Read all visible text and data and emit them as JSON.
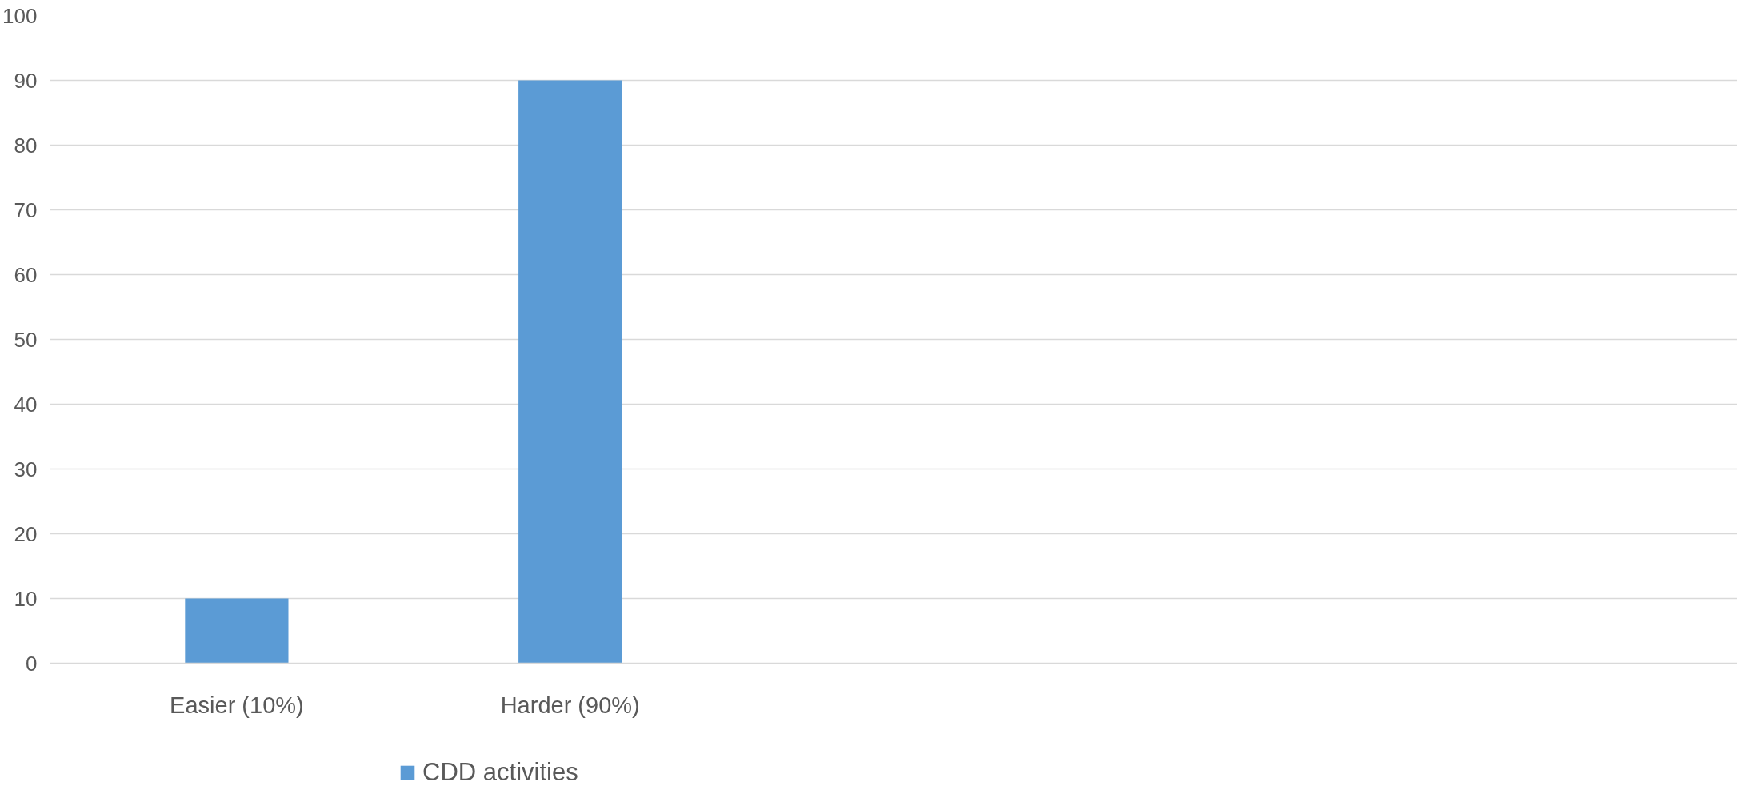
{
  "chart_data": {
    "type": "bar",
    "categories": [
      "Easier (10%)",
      "Harder (90%)",
      null,
      null,
      null
    ],
    "series": [
      {
        "name": "CDD activities",
        "color": "#5b9bd5",
        "values": [
          10,
          90,
          null,
          null,
          null
        ]
      }
    ],
    "ylim": [
      0,
      100
    ],
    "yticks": [
      0,
      10,
      20,
      30,
      40,
      50,
      60,
      70,
      80,
      90,
      100
    ],
    "grid": "y",
    "legend": "bottom"
  }
}
